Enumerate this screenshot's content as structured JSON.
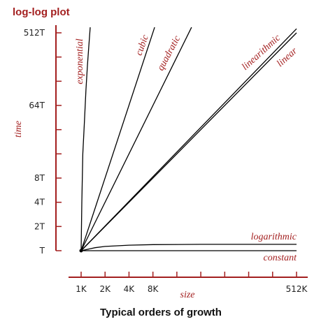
{
  "chart_data": {
    "type": "line",
    "title": "log-log plot",
    "xlabel": "size",
    "ylabel": "time",
    "caption": "Typical orders of growth",
    "x_scale": "log2",
    "y_scale": "log2",
    "x_ticks": [
      {
        "value": 1,
        "label": "1K"
      },
      {
        "value": 2,
        "label": "2K"
      },
      {
        "value": 4,
        "label": "4K"
      },
      {
        "value": 8,
        "label": "8K"
      },
      {
        "value": 16,
        "label": ""
      },
      {
        "value": 32,
        "label": ""
      },
      {
        "value": 64,
        "label": ""
      },
      {
        "value": 128,
        "label": ""
      },
      {
        "value": 256,
        "label": ""
      },
      {
        "value": 512,
        "label": "512K"
      }
    ],
    "y_ticks": [
      {
        "value": 1,
        "label": "T"
      },
      {
        "value": 2,
        "label": "2T"
      },
      {
        "value": 4,
        "label": "4T"
      },
      {
        "value": 8,
        "label": "8T"
      },
      {
        "value": 16,
        "label": ""
      },
      {
        "value": 32,
        "label": ""
      },
      {
        "value": 64,
        "label": "64T"
      },
      {
        "value": 128,
        "label": ""
      },
      {
        "value": 256,
        "label": ""
      },
      {
        "value": 512,
        "label": "512T"
      }
    ],
    "xlim": [
      1,
      512
    ],
    "ylim": [
      1,
      512
    ],
    "series": [
      {
        "name": "exponential",
        "x": [
          1,
          1.02,
          1.05,
          1.1,
          1.15,
          1.2,
          1.25,
          1.3
        ],
        "y": [
          1,
          4,
          16,
          40,
          100,
          200,
          350,
          600
        ]
      },
      {
        "name": "cubic",
        "x": [
          1,
          8.4
        ],
        "y": [
          1,
          600
        ]
      },
      {
        "name": "quadratic",
        "x": [
          1,
          24.5
        ],
        "y": [
          1,
          600
        ]
      },
      {
        "name": "linearithmic",
        "x": [
          1,
          512
        ],
        "y": [
          1,
          575
        ]
      },
      {
        "name": "linear",
        "x": [
          1,
          512
        ],
        "y": [
          1,
          512
        ]
      },
      {
        "name": "logarithmic",
        "x": [
          1,
          1.5,
          2,
          4,
          8,
          32,
          128,
          512
        ],
        "y": [
          1,
          1.09,
          1.13,
          1.17,
          1.19,
          1.2,
          1.2,
          1.2
        ]
      },
      {
        "name": "constant",
        "x": [
          1,
          512
        ],
        "y": [
          1,
          1
        ]
      }
    ],
    "grid": false,
    "legend": "none"
  },
  "colors": {
    "accent": "#a31f1f",
    "line": "#000000",
    "text": "#222222"
  }
}
